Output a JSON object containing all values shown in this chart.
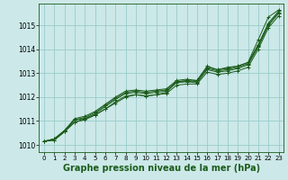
{
  "bg_color": "#cce8e8",
  "grid_color": "#99cccc",
  "line_color": "#1a5c1a",
  "xlabel": "Graphe pression niveau de la mer (hPa)",
  "xlabel_fontsize": 7.0,
  "ylabel_ticks": [
    1010,
    1011,
    1012,
    1013,
    1014,
    1015
  ],
  "xlim": [
    -0.5,
    23.5
  ],
  "ylim": [
    1009.7,
    1015.9
  ],
  "xticks": [
    0,
    1,
    2,
    3,
    4,
    5,
    6,
    7,
    8,
    9,
    10,
    11,
    12,
    13,
    14,
    15,
    16,
    17,
    18,
    19,
    20,
    21,
    22,
    23
  ],
  "series": [
    [
      1010.15,
      1010.2,
      1010.55,
      1010.95,
      1011.05,
      1011.25,
      1011.5,
      1011.8,
      1012.05,
      1012.1,
      1012.05,
      1012.1,
      1012.15,
      1012.5,
      1012.55,
      1012.55,
      1013.05,
      1012.95,
      1013.0,
      1013.1,
      1013.25,
      1014.0,
      1014.9,
      1015.4
    ],
    [
      1010.15,
      1010.2,
      1010.55,
      1010.95,
      1011.1,
      1011.3,
      1011.6,
      1011.9,
      1012.15,
      1012.2,
      1012.15,
      1012.2,
      1012.25,
      1012.6,
      1012.65,
      1012.6,
      1013.15,
      1013.05,
      1013.1,
      1013.2,
      1013.35,
      1014.1,
      1015.0,
      1015.5
    ],
    [
      1010.15,
      1010.25,
      1010.6,
      1011.05,
      1011.15,
      1011.35,
      1011.65,
      1011.95,
      1012.2,
      1012.25,
      1012.2,
      1012.25,
      1012.3,
      1012.65,
      1012.7,
      1012.65,
      1013.2,
      1013.1,
      1013.15,
      1013.25,
      1013.4,
      1014.15,
      1015.05,
      1015.55
    ],
    [
      1010.15,
      1010.25,
      1010.6,
      1011.1,
      1011.2,
      1011.4,
      1011.7,
      1012.0,
      1012.25,
      1012.3,
      1012.25,
      1012.3,
      1012.35,
      1012.7,
      1012.75,
      1012.7,
      1013.25,
      1013.15,
      1013.2,
      1013.3,
      1013.45,
      1014.2,
      1015.1,
      1015.6
    ],
    [
      1010.15,
      1010.25,
      1010.55,
      1011.05,
      1011.1,
      1011.25,
      1011.5,
      1011.75,
      1012.0,
      1012.1,
      1012.05,
      1012.1,
      1012.2,
      1012.65,
      1012.65,
      1012.7,
      1013.3,
      1013.15,
      1013.25,
      1013.3,
      1013.45,
      1014.4,
      1015.35,
      1015.65
    ]
  ]
}
